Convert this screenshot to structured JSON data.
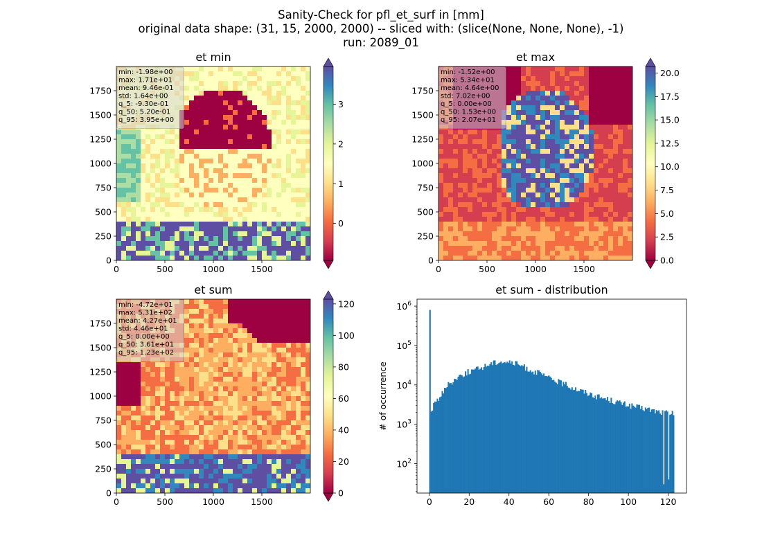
{
  "figure": {
    "suptitle": [
      "Sanity-Check for pfl_et_surf in [mm]",
      "original data shape: (31, 15, 2000, 2000) -- sliced with: (slice(None, None, None), -1)",
      "run: 2089_01"
    ]
  },
  "colors": {
    "histogram": "#1f77b4",
    "spectral_colormap": [
      "#9e0142",
      "#d53e4f",
      "#f46d43",
      "#fdae61",
      "#fee08b",
      "#ffffbf",
      "#e6f598",
      "#abdda4",
      "#66c2a5",
      "#3288bd",
      "#5e4fa2"
    ],
    "stats_box_bg": "#d3d3d3"
  },
  "chart_data": [
    {
      "type": "heatmap",
      "title": "et min",
      "x_ticks": [
        0,
        500,
        1000,
        1500
      ],
      "y_ticks": [
        0,
        250,
        500,
        750,
        1000,
        1250,
        1500,
        1750
      ],
      "xlim": [
        0,
        2000
      ],
      "ylim": [
        0,
        2000
      ],
      "colormap": "Spectral",
      "colorbar": {
        "range": [
          -0.93,
          3.95
        ],
        "ticks": [
          "0",
          "1",
          "2",
          "3"
        ],
        "tick_values": [
          0,
          1,
          2,
          3
        ],
        "extend": "both"
      },
      "stats": [
        "min: -1.98e+00",
        "max: 1.71e+01",
        "mean: 9.46e-01",
        "std: 1.64e+00",
        "q_5: -9.30e-01",
        "q_50: 5.20e-01",
        "q_95: 3.95e+00"
      ]
    },
    {
      "type": "heatmap",
      "title": "et max",
      "x_ticks": [
        0,
        500,
        1000,
        1500
      ],
      "y_ticks": [
        0,
        250,
        500,
        750,
        1000,
        1250,
        1500,
        1750
      ],
      "xlim": [
        0,
        2000
      ],
      "ylim": [
        0,
        2000
      ],
      "colormap": "Spectral",
      "colorbar": {
        "range": [
          0,
          20.7
        ],
        "ticks": [
          "0.0",
          "2.5",
          "5.0",
          "7.5",
          "10.0",
          "12.5",
          "15.0",
          "17.5",
          "20.0"
        ],
        "tick_values": [
          0,
          2.5,
          5,
          7.5,
          10,
          12.5,
          15,
          17.5,
          20
        ],
        "extend": "both"
      },
      "stats": [
        "min: -1.52e+00",
        "max: 5.34e+01",
        "mean: 4.64e+00",
        "std: 7.02e+00",
        "q_5: 0.00e+00",
        "q_50: 1.53e+00",
        "q_95: 2.07e+01"
      ]
    },
    {
      "type": "heatmap",
      "title": "et sum",
      "x_ticks": [
        0,
        500,
        1000,
        1500
      ],
      "y_ticks": [
        0,
        250,
        500,
        750,
        1000,
        1250,
        1500,
        1750
      ],
      "xlim": [
        0,
        2000
      ],
      "ylim": [
        0,
        2000
      ],
      "colormap": "Spectral",
      "colorbar": {
        "range": [
          0,
          123
        ],
        "ticks": [
          "0",
          "20",
          "40",
          "60",
          "80",
          "100",
          "120"
        ],
        "tick_values": [
          0,
          20,
          40,
          60,
          80,
          100,
          120
        ],
        "extend": "both"
      },
      "stats": [
        "min: -4.72e+01",
        "max: 5.31e+02",
        "mean: 4.27e+01",
        "std: 4.46e+01",
        "q_5: 0.00e+00",
        "q_50: 3.61e+01",
        "q_95: 1.23e+02"
      ]
    },
    {
      "type": "bar",
      "title": "et sum - distribution",
      "ylabel": "# of occurrence",
      "xlabel": "",
      "log_y": true,
      "xlim": [
        -6.2,
        129.2
      ],
      "ylim": [
        18,
        1500000
      ],
      "x_ticks": [
        0,
        20,
        40,
        60,
        80,
        100,
        120
      ],
      "y_ticks": [
        100,
        1000,
        10000,
        100000,
        1000000
      ],
      "y_tick_labels": [
        {
          "base": "10",
          "exp": "2"
        },
        {
          "base": "10",
          "exp": "3"
        },
        {
          "base": "10",
          "exp": "4"
        },
        {
          "base": "10",
          "exp": "5"
        },
        {
          "base": "10",
          "exp": "6"
        }
      ],
      "bin_range": [
        0,
        123
      ],
      "spike": {
        "x": 0,
        "value": 800000
      },
      "profile": [
        {
          "x": 0.3,
          "y": 1600
        },
        {
          "x": 2,
          "y": 3000
        },
        {
          "x": 5,
          "y": 5000
        },
        {
          "x": 10,
          "y": 11000
        },
        {
          "x": 15,
          "y": 17000
        },
        {
          "x": 20,
          "y": 22000
        },
        {
          "x": 25,
          "y": 26000
        },
        {
          "x": 30,
          "y": 34000
        },
        {
          "x": 35,
          "y": 40000
        },
        {
          "x": 40,
          "y": 38000
        },
        {
          "x": 45,
          "y": 33000
        },
        {
          "x": 50,
          "y": 25000
        },
        {
          "x": 55,
          "y": 20000
        },
        {
          "x": 60,
          "y": 15000
        },
        {
          "x": 65,
          "y": 12000
        },
        {
          "x": 70,
          "y": 9500
        },
        {
          "x": 75,
          "y": 7500
        },
        {
          "x": 80,
          "y": 6200
        },
        {
          "x": 85,
          "y": 5000
        },
        {
          "x": 90,
          "y": 4300
        },
        {
          "x": 95,
          "y": 3600
        },
        {
          "x": 100,
          "y": 3100
        },
        {
          "x": 105,
          "y": 2700
        },
        {
          "x": 110,
          "y": 2400
        },
        {
          "x": 115,
          "y": 2100
        },
        {
          "x": 118,
          "y": 2000
        },
        {
          "x": 120,
          "y": 2000
        },
        {
          "x": 123,
          "y": 1800
        }
      ],
      "dips": [
        {
          "x": 117.6,
          "y": 30
        },
        {
          "x": 120.3,
          "y": 40
        }
      ]
    }
  ]
}
